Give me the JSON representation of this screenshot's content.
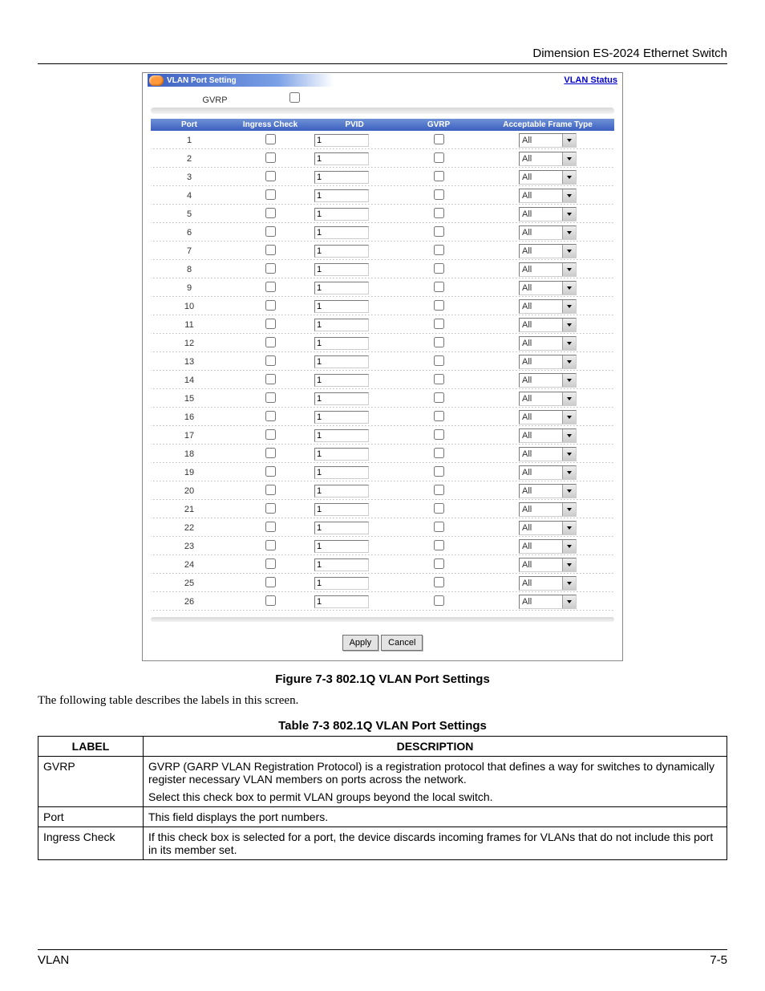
{
  "header": {
    "text": "Dimension ES-2024 Ethernet Switch"
  },
  "screenshot": {
    "title": "VLAN Port Setting",
    "status_link": "VLAN Status",
    "gvrp_global_label": "GVRP",
    "gvrp_global_checked": false,
    "columns": {
      "port": "Port",
      "ingress": "Ingress Check",
      "pvid": "PVID",
      "gvrp": "GVRP",
      "aft": "Acceptable Frame Type"
    },
    "rows": [
      {
        "port": "1",
        "ingress": false,
        "pvid": "1",
        "gvrp": false,
        "aft": "All"
      },
      {
        "port": "2",
        "ingress": false,
        "pvid": "1",
        "gvrp": false,
        "aft": "All"
      },
      {
        "port": "3",
        "ingress": false,
        "pvid": "1",
        "gvrp": false,
        "aft": "All"
      },
      {
        "port": "4",
        "ingress": false,
        "pvid": "1",
        "gvrp": false,
        "aft": "All"
      },
      {
        "port": "5",
        "ingress": false,
        "pvid": "1",
        "gvrp": false,
        "aft": "All"
      },
      {
        "port": "6",
        "ingress": false,
        "pvid": "1",
        "gvrp": false,
        "aft": "All"
      },
      {
        "port": "7",
        "ingress": false,
        "pvid": "1",
        "gvrp": false,
        "aft": "All"
      },
      {
        "port": "8",
        "ingress": false,
        "pvid": "1",
        "gvrp": false,
        "aft": "All"
      },
      {
        "port": "9",
        "ingress": false,
        "pvid": "1",
        "gvrp": false,
        "aft": "All"
      },
      {
        "port": "10",
        "ingress": false,
        "pvid": "1",
        "gvrp": false,
        "aft": "All"
      },
      {
        "port": "11",
        "ingress": false,
        "pvid": "1",
        "gvrp": false,
        "aft": "All"
      },
      {
        "port": "12",
        "ingress": false,
        "pvid": "1",
        "gvrp": false,
        "aft": "All"
      },
      {
        "port": "13",
        "ingress": false,
        "pvid": "1",
        "gvrp": false,
        "aft": "All"
      },
      {
        "port": "14",
        "ingress": false,
        "pvid": "1",
        "gvrp": false,
        "aft": "All"
      },
      {
        "port": "15",
        "ingress": false,
        "pvid": "1",
        "gvrp": false,
        "aft": "All"
      },
      {
        "port": "16",
        "ingress": false,
        "pvid": "1",
        "gvrp": false,
        "aft": "All"
      },
      {
        "port": "17",
        "ingress": false,
        "pvid": "1",
        "gvrp": false,
        "aft": "All"
      },
      {
        "port": "18",
        "ingress": false,
        "pvid": "1",
        "gvrp": false,
        "aft": "All"
      },
      {
        "port": "19",
        "ingress": false,
        "pvid": "1",
        "gvrp": false,
        "aft": "All"
      },
      {
        "port": "20",
        "ingress": false,
        "pvid": "1",
        "gvrp": false,
        "aft": "All"
      },
      {
        "port": "21",
        "ingress": false,
        "pvid": "1",
        "gvrp": false,
        "aft": "All"
      },
      {
        "port": "22",
        "ingress": false,
        "pvid": "1",
        "gvrp": false,
        "aft": "All"
      },
      {
        "port": "23",
        "ingress": false,
        "pvid": "1",
        "gvrp": false,
        "aft": "All"
      },
      {
        "port": "24",
        "ingress": false,
        "pvid": "1",
        "gvrp": false,
        "aft": "All"
      },
      {
        "port": "25",
        "ingress": false,
        "pvid": "1",
        "gvrp": false,
        "aft": "All"
      },
      {
        "port": "26",
        "ingress": false,
        "pvid": "1",
        "gvrp": false,
        "aft": "All"
      }
    ],
    "buttons": {
      "apply": "Apply",
      "cancel": "Cancel"
    }
  },
  "figure_caption": "Figure 7-3 802.1Q VLAN Port Settings",
  "body_text": "The following table describes the labels in this screen.",
  "table_caption": "Table 7-3 802.1Q VLAN Port Settings",
  "desc_table": {
    "headers": {
      "label": "LABEL",
      "desc": "DESCRIPTION"
    },
    "rows": [
      {
        "label": "GVRP",
        "desc": [
          "GVRP (GARP VLAN Registration Protocol) is a registration protocol that defines a way for switches to dynamically register necessary VLAN members on ports across the network.",
          "Select this check box to permit VLAN groups beyond the local switch."
        ]
      },
      {
        "label": "Port",
        "desc": [
          "This field displays the port numbers."
        ]
      },
      {
        "label": "Ingress Check",
        "desc": [
          "If this check box is selected for a port, the device discards incoming frames for VLANs that do not include this port in its member set."
        ]
      }
    ]
  },
  "footer": {
    "left": "VLAN",
    "right": "7-5"
  }
}
